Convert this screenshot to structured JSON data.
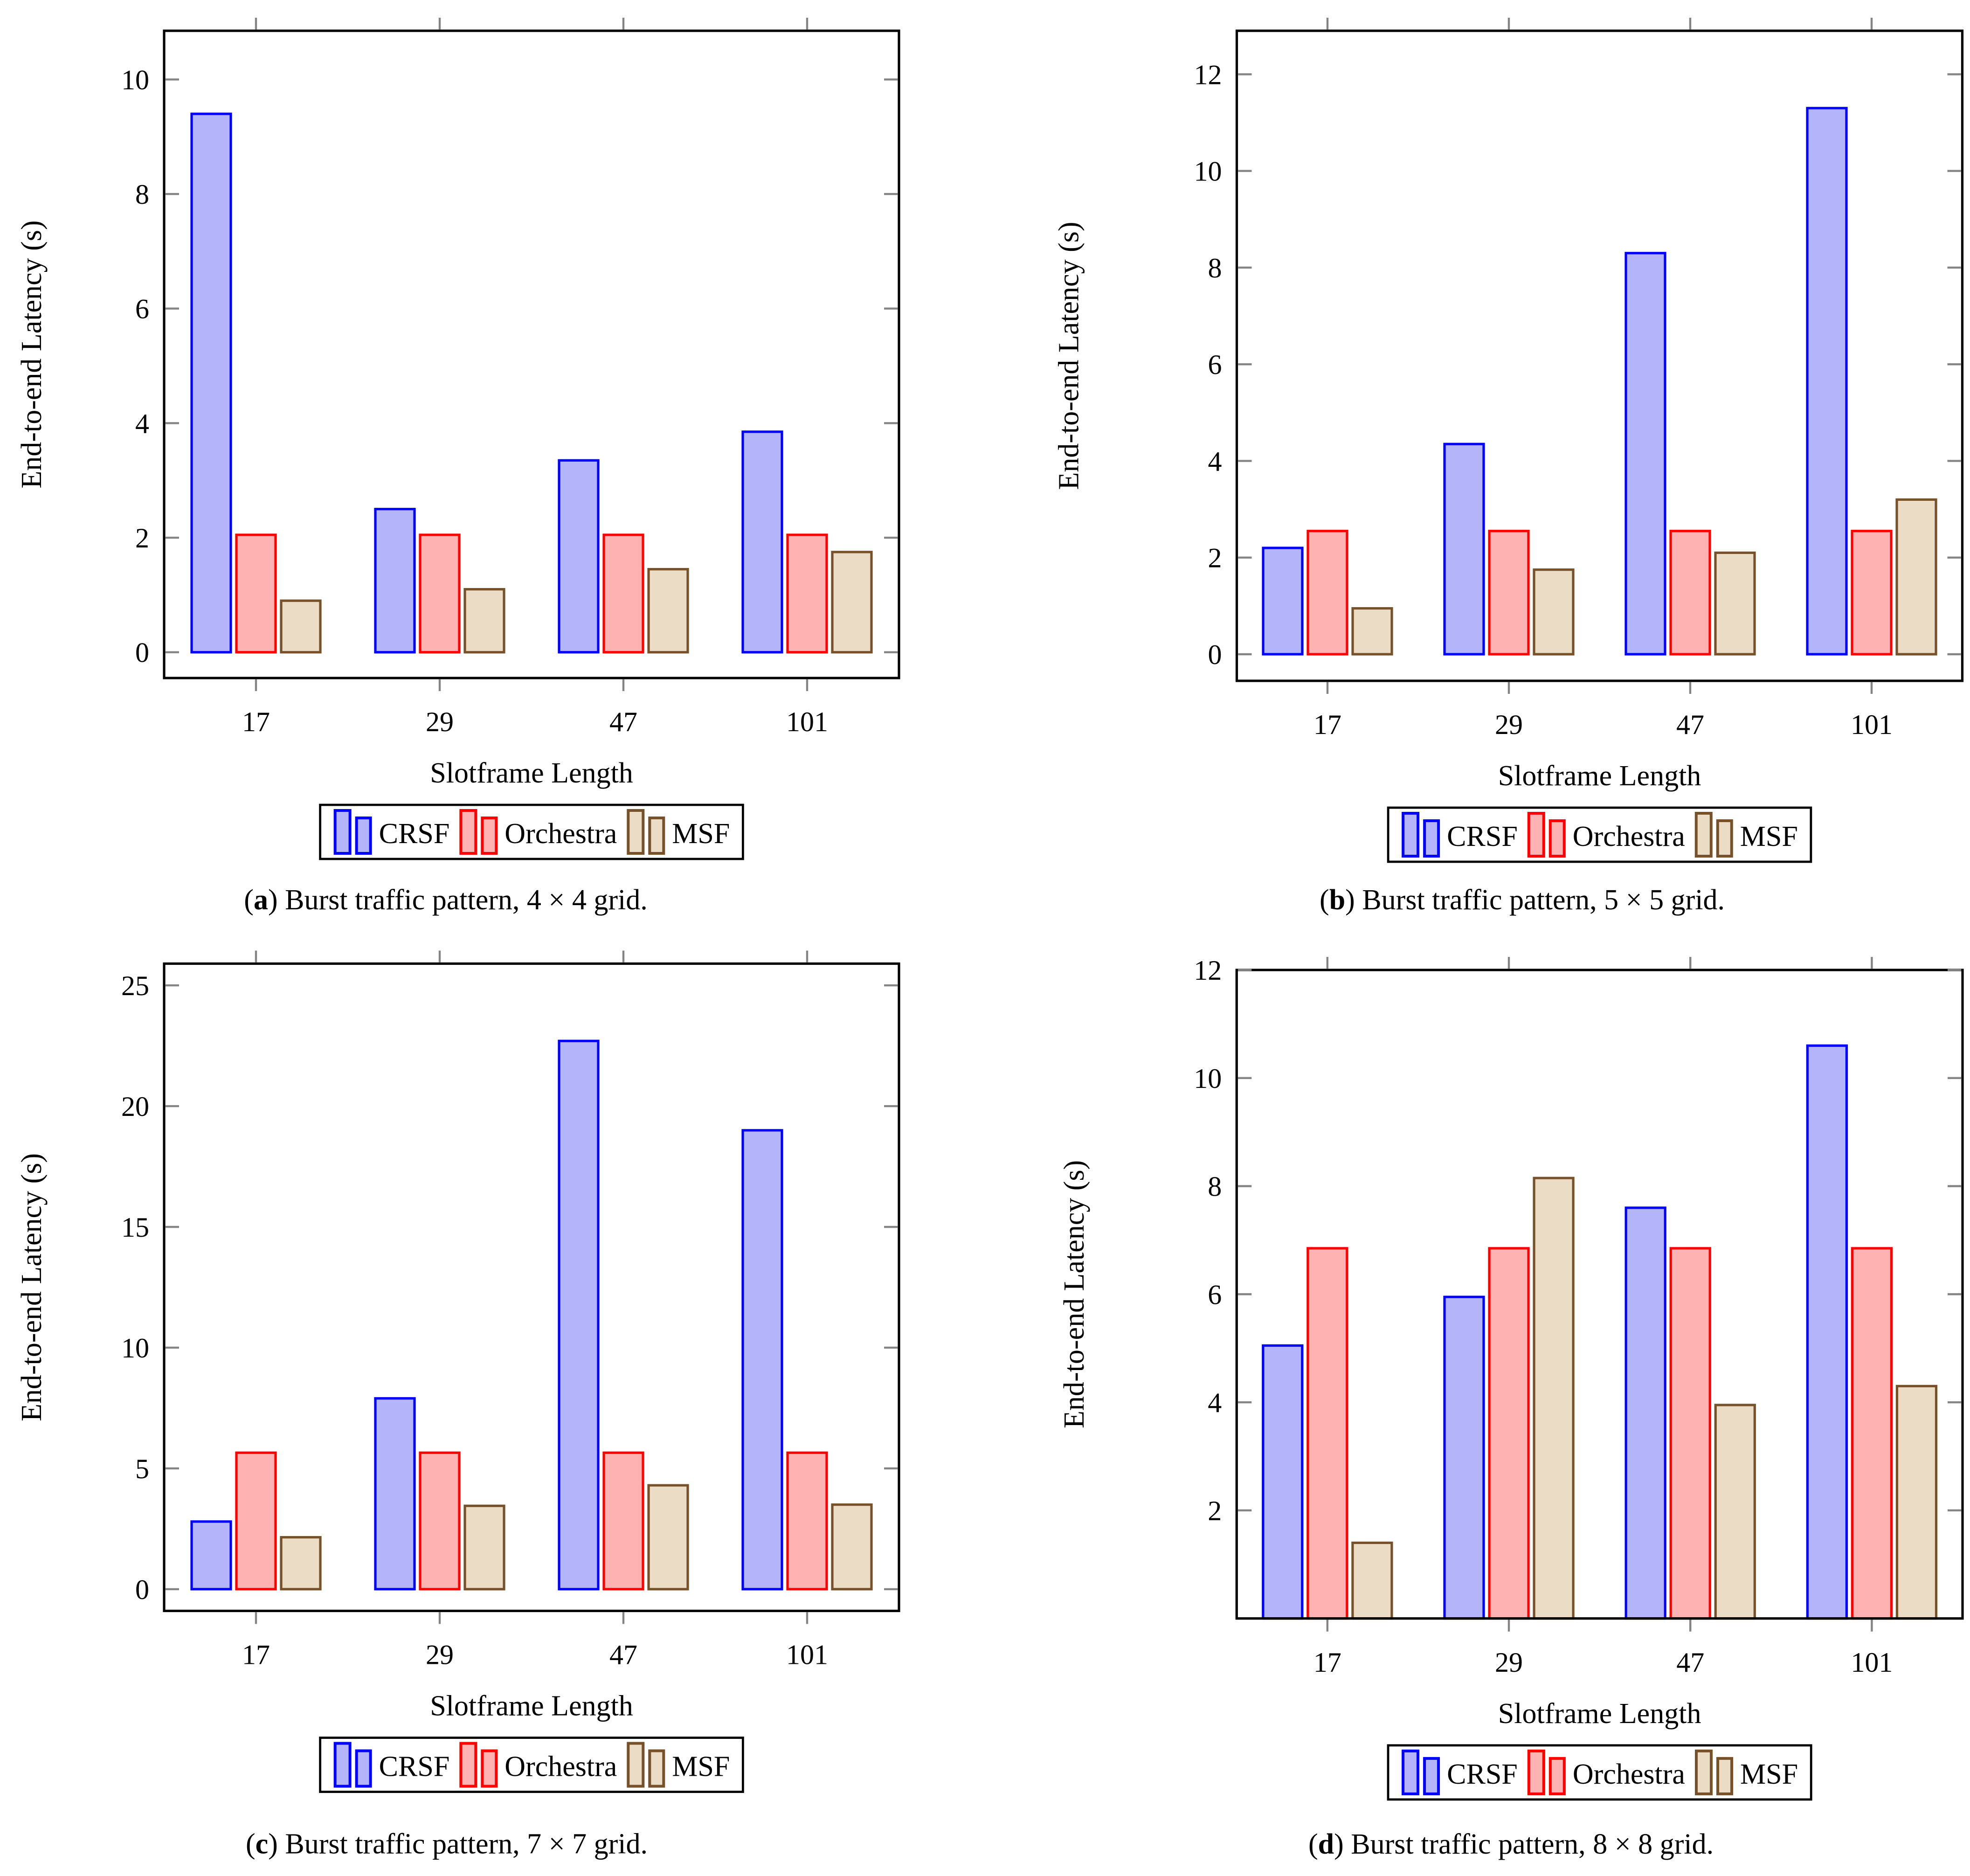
{
  "page": {
    "background": "#ffffff",
    "description": "Four bar charts comparing end-to-end latency of scheduling functions under burst traffic"
  },
  "series_styles": [
    {
      "name": "CRSF",
      "fill": "#b4b4fa",
      "border": "#0000ff"
    },
    {
      "name": "Orchestra",
      "fill": "#ffb2b2",
      "border": "#ff0000"
    },
    {
      "name": "MSF",
      "fill": "#ebdcc6",
      "border": "#77512a"
    }
  ],
  "axis_colors": {
    "frame": "#000000",
    "tick": "#848484",
    "text": "#000000"
  },
  "chart_data": [
    {
      "id": "a",
      "type": "bar",
      "caption_letter": "a",
      "caption_text": "Burst traffic pattern, 4 × 4 grid.",
      "xlabel": "Slotframe Length",
      "ylabel": "End-to-end Latency (s)",
      "categories": [
        "17",
        "29",
        "47",
        "101"
      ],
      "series": [
        {
          "name": "CRSF",
          "values": [
            9.4,
            2.5,
            3.35,
            3.85
          ]
        },
        {
          "name": "Orchestra",
          "values": [
            2.05,
            2.05,
            2.05,
            2.05
          ]
        },
        {
          "name": "MSF",
          "values": [
            0.9,
            1.1,
            1.45,
            1.75
          ]
        }
      ],
      "yticks": [
        0,
        2,
        4,
        6,
        8,
        10
      ],
      "ylim": [
        -0.45,
        10.85
      ],
      "legend": [
        "CRSF",
        "Orchestra",
        "MSF"
      ],
      "legend_position": "below",
      "grid": false
    },
    {
      "id": "b",
      "type": "bar",
      "caption_letter": "b",
      "caption_text": "Burst traffic pattern, 5 × 5 grid.",
      "xlabel": "Slotframe Length",
      "ylabel": "End-to-end Latency (s)",
      "categories": [
        "17",
        "29",
        "47",
        "101"
      ],
      "series": [
        {
          "name": "CRSF",
          "values": [
            2.2,
            4.35,
            8.3,
            11.3
          ]
        },
        {
          "name": "Orchestra",
          "values": [
            2.55,
            2.55,
            2.55,
            2.55
          ]
        },
        {
          "name": "MSF",
          "values": [
            0.95,
            1.75,
            2.1,
            3.2
          ]
        }
      ],
      "yticks": [
        0,
        2,
        4,
        6,
        8,
        10,
        12
      ],
      "ylim": [
        -0.55,
        12.9
      ],
      "legend": [
        "CRSF",
        "Orchestra",
        "MSF"
      ],
      "legend_position": "below",
      "grid": false
    },
    {
      "id": "c",
      "type": "bar",
      "caption_letter": "c",
      "caption_text": "Burst traffic pattern, 7 × 7 grid.",
      "xlabel": "Slotframe Length",
      "ylabel": "End-to-end Latency (s)",
      "categories": [
        "17",
        "29",
        "47",
        "101"
      ],
      "series": [
        {
          "name": "CRSF",
          "values": [
            2.8,
            7.9,
            22.7,
            19.0
          ]
        },
        {
          "name": "Orchestra",
          "values": [
            5.65,
            5.65,
            5.65,
            5.65
          ]
        },
        {
          "name": "MSF",
          "values": [
            2.15,
            3.45,
            4.3,
            3.5
          ]
        }
      ],
      "yticks": [
        0,
        5,
        10,
        15,
        20,
        25
      ],
      "ylim": [
        -0.9,
        25.9
      ],
      "legend": [
        "CRSF",
        "Orchestra",
        "MSF"
      ],
      "legend_position": "below",
      "grid": false
    },
    {
      "id": "d",
      "type": "bar",
      "caption_letter": "d",
      "caption_text": "Burst traffic pattern, 8 × 8 grid.",
      "xlabel": "Slotframe Length",
      "ylabel": "End-to-end Latency (s)",
      "categories": [
        "17",
        "29",
        "47",
        "101"
      ],
      "series": [
        {
          "name": "CRSF",
          "values": [
            5.05,
            5.95,
            7.6,
            10.6
          ]
        },
        {
          "name": "Orchestra",
          "values": [
            6.85,
            6.85,
            6.85,
            6.85
          ]
        },
        {
          "name": "MSF",
          "values": [
            1.4,
            8.15,
            3.95,
            4.3
          ]
        }
      ],
      "yticks": [
        2,
        4,
        6,
        8,
        10,
        12
      ],
      "ylim": [
        0,
        12
      ],
      "legend": [
        "CRSF",
        "Orchestra",
        "MSF"
      ],
      "legend_position": "below",
      "grid": false
    }
  ]
}
